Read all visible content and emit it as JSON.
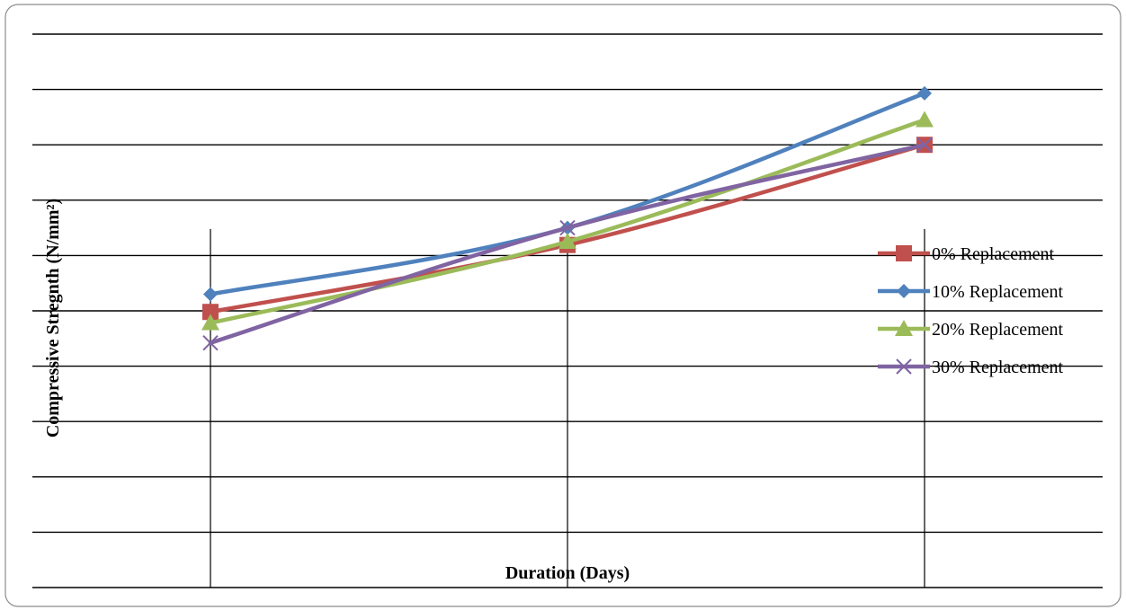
{
  "chart_data": {
    "type": "line",
    "categories": [
      "",
      "",
      ""
    ],
    "xlabel": "Duration (Days)",
    "ylabel": "Compressive Stregnth (N/mm²)",
    "ylim": [
      0,
      10
    ],
    "grid": true,
    "legend_position": "right",
    "series": [
      {
        "name": "0% Replacement",
        "color": "#c0504d",
        "marker": "square",
        "values": [
          4.98,
          6.19,
          8.0
        ]
      },
      {
        "name": "10% Replacement",
        "color": "#4f81bd",
        "marker": "diamond",
        "values": [
          5.3,
          6.5,
          8.93
        ]
      },
      {
        "name": "20% Replacement",
        "color": "#9bbb59",
        "marker": "triangle",
        "values": [
          4.78,
          6.25,
          8.45
        ]
      },
      {
        "name": "30% Replacement",
        "color": "#8064a2",
        "marker": "x",
        "values": [
          4.42,
          6.5,
          8.0
        ]
      }
    ]
  }
}
